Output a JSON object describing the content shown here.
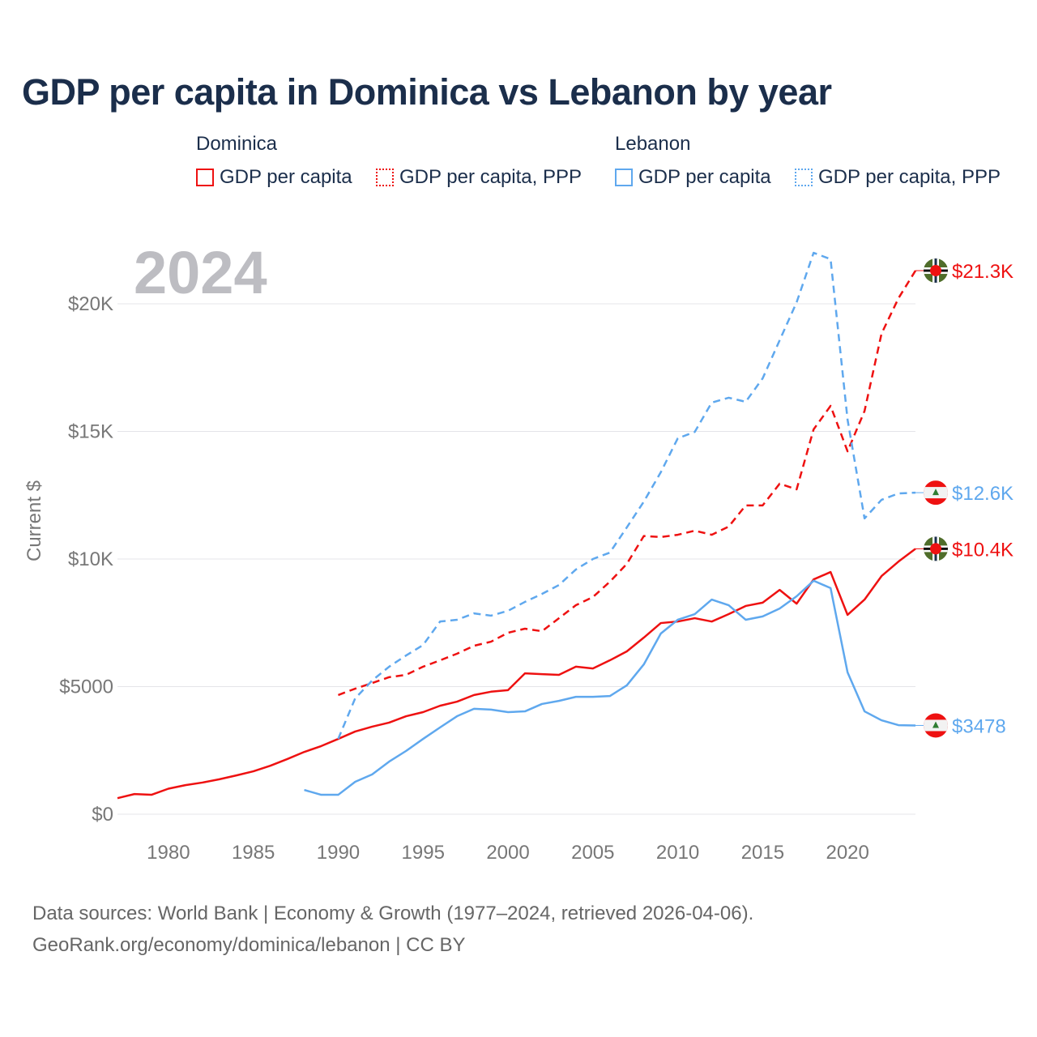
{
  "chart_data": {
    "type": "line",
    "title": "GDP per capita in Dominica vs Lebanon by year",
    "ylabel": "Current $",
    "xlabel": "",
    "xlim": [
      1977,
      2024
    ],
    "ylim": [
      0,
      22500
    ],
    "grid": true,
    "year_watermark": "2024",
    "x_ticks": [
      1980,
      1985,
      1990,
      1995,
      2000,
      2005,
      2010,
      2015,
      2020
    ],
    "y_ticks": [
      {
        "v": 0,
        "label": "$0"
      },
      {
        "v": 5000,
        "label": "$5000"
      },
      {
        "v": 10000,
        "label": "$10K"
      },
      {
        "v": 15000,
        "label": "$15K"
      },
      {
        "v": 20000,
        "label": "$20K"
      }
    ],
    "legend": {
      "placement": "top",
      "groups": [
        {
          "name": "Dominica",
          "items": [
            "GDP per capita",
            "GDP per capita, PPP"
          ]
        },
        {
          "name": "Lebanon",
          "items": [
            "GDP per capita",
            "GDP per capita, PPP"
          ]
        }
      ]
    },
    "series": [
      {
        "name": "Dominica GDP per capita",
        "country": "dominica",
        "color": "#ee1111",
        "dash": false,
        "end_label": "$10.4K",
        "start": 1977,
        "values": [
          630,
          790,
          760,
          1000,
          1140,
          1240,
          1370,
          1520,
          1680,
          1900,
          2160,
          2440,
          2670,
          2950,
          3240,
          3430,
          3590,
          3840,
          4000,
          4250,
          4410,
          4670,
          4800,
          4860,
          5520,
          5490,
          5460,
          5780,
          5710,
          6030,
          6380,
          6920,
          7490,
          7550,
          7680,
          7550,
          7840,
          8160,
          8290,
          8790,
          8250,
          9200,
          9490,
          7810,
          8410,
          9330,
          9900,
          10400
        ]
      },
      {
        "name": "Dominica GDP per capita, PPP",
        "country": "dominica",
        "color": "#ee1111",
        "dash": true,
        "end_label": "$21.3K",
        "start": 1990,
        "values": [
          4670,
          4920,
          5140,
          5370,
          5460,
          5780,
          6030,
          6290,
          6600,
          6760,
          7110,
          7270,
          7170,
          7680,
          8190,
          8510,
          9110,
          9810,
          10900,
          10860,
          10950,
          11110,
          10950,
          11270,
          12100,
          12100,
          12950,
          12730,
          15080,
          16000,
          14220,
          15800,
          18830,
          20220,
          21300
        ]
      },
      {
        "name": "Lebanon GDP per capita",
        "country": "lebanon",
        "color": "#5fa8ee",
        "dash": false,
        "end_label": "$3478",
        "start": 1988,
        "values": [
          950,
          760,
          760,
          1270,
          1560,
          2060,
          2480,
          2950,
          3400,
          3840,
          4130,
          4100,
          4000,
          4030,
          4320,
          4440,
          4600,
          4600,
          4630,
          5050,
          5870,
          7080,
          7620,
          7840,
          8410,
          8190,
          7620,
          7750,
          8060,
          8540,
          9150,
          8860,
          5560,
          4030,
          3680,
          3490,
          3478
        ]
      },
      {
        "name": "Lebanon GDP per capita, PPP",
        "country": "lebanon",
        "color": "#5fa8ee",
        "dash": true,
        "end_label": "$12.6K",
        "start": 1990,
        "values": [
          2950,
          4540,
          5240,
          5780,
          6220,
          6630,
          7550,
          7620,
          7870,
          7780,
          7970,
          8320,
          8630,
          8980,
          9590,
          10000,
          10250,
          11240,
          12250,
          13400,
          14730,
          14980,
          16130,
          16320,
          16160,
          17080,
          18570,
          20060,
          22000,
          21750,
          15460,
          11590,
          12320,
          12570,
          12600
        ]
      }
    ]
  },
  "legend": {
    "dominica": "Dominica",
    "lebanon": "Lebanon",
    "gdp": "GDP per capita",
    "ppp": "GDP per capita, PPP"
  },
  "source": {
    "line1": "Data sources: World Bank | Economy & Growth (1977–2024, retrieved 2026-04-06).",
    "line2": "GeoRank.org/economy/dominica/lebanon | CC BY"
  },
  "colors": {
    "dominica": "#ee1111",
    "lebanon": "#5fa8ee",
    "title": "#1b2e4b"
  }
}
